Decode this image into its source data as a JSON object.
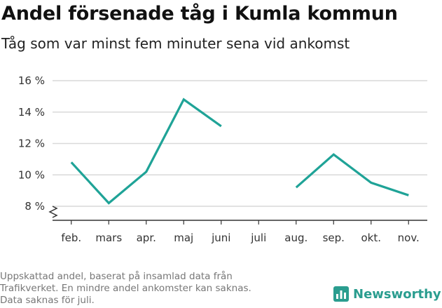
{
  "title": "Andel försenade tåg i Kumla kommun",
  "subtitle": "Tåg som var minst fem minuter sena vid ankomst",
  "footnote": [
    "Uppskattad andel, baserat på insamlad data från",
    "Trafikverket. En mindre andel ankomster kan saknas.",
    "Data saknas för juli."
  ],
  "brand": {
    "name": "Newsworthy",
    "color": "#2a9d8f",
    "icon": "bar-chart-logo-icon"
  },
  "colors": {
    "line": "#1fa397",
    "grid": "#d9d9d9",
    "axis": "#333333"
  },
  "chart_data": {
    "type": "line",
    "title": "Andel försenade tåg i Kumla kommun",
    "subtitle": "Tåg som var minst fem minuter sena vid ankomst",
    "categories": [
      "feb.",
      "mars",
      "apr.",
      "maj",
      "juni",
      "juli",
      "aug.",
      "sep.",
      "okt.",
      "nov."
    ],
    "series": [
      {
        "values": [
          10.8,
          8.2,
          10.2,
          14.8,
          13.1,
          null,
          9.2,
          11.3,
          9.5,
          8.7
        ]
      }
    ],
    "y_ticks": [
      8,
      10,
      12,
      14,
      16
    ],
    "y_tick_labels": [
      "8 %",
      "10 %",
      "12 %",
      "14 %",
      "16 %"
    ],
    "ylim": [
      8,
      16
    ],
    "y_axis_break": true,
    "grid": true,
    "legend": "none"
  }
}
